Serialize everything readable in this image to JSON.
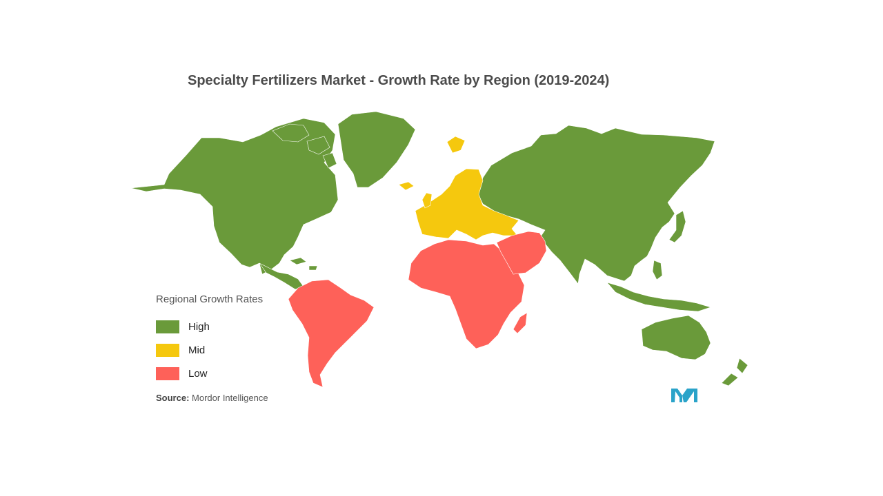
{
  "title": "Specialty Fertilizers Market - Growth Rate by Region (2019-2024)",
  "colors": {
    "high": "#6a9a3a",
    "mid": "#f5c80e",
    "low": "#fe6159",
    "logo": "#2aa3c9"
  },
  "legend": {
    "title": "Regional Growth Rates",
    "items": [
      {
        "label": "High",
        "color": "#6a9a3a"
      },
      {
        "label": "Mid",
        "color": "#f5c80e"
      },
      {
        "label": "Low",
        "color": "#fe6159"
      }
    ]
  },
  "source": {
    "label": "Source:",
    "value": "Mordor Intelligence"
  },
  "regions": [
    {
      "name": "North America",
      "rate": "High"
    },
    {
      "name": "Greenland",
      "rate": "High"
    },
    {
      "name": "Russia",
      "rate": "High"
    },
    {
      "name": "Asia",
      "rate": "High"
    },
    {
      "name": "India",
      "rate": "High"
    },
    {
      "name": "Southeast Asia",
      "rate": "High"
    },
    {
      "name": "Australia",
      "rate": "High"
    },
    {
      "name": "New Zealand",
      "rate": "High"
    },
    {
      "name": "Europe",
      "rate": "Mid"
    },
    {
      "name": "Svalbard",
      "rate": "Mid"
    },
    {
      "name": "South America",
      "rate": "Low"
    },
    {
      "name": "Africa",
      "rate": "Low"
    },
    {
      "name": "Middle East",
      "rate": "Low"
    },
    {
      "name": "Madagascar",
      "rate": "Low"
    }
  ],
  "logo": {
    "icon": "mordor-intelligence-logo"
  }
}
